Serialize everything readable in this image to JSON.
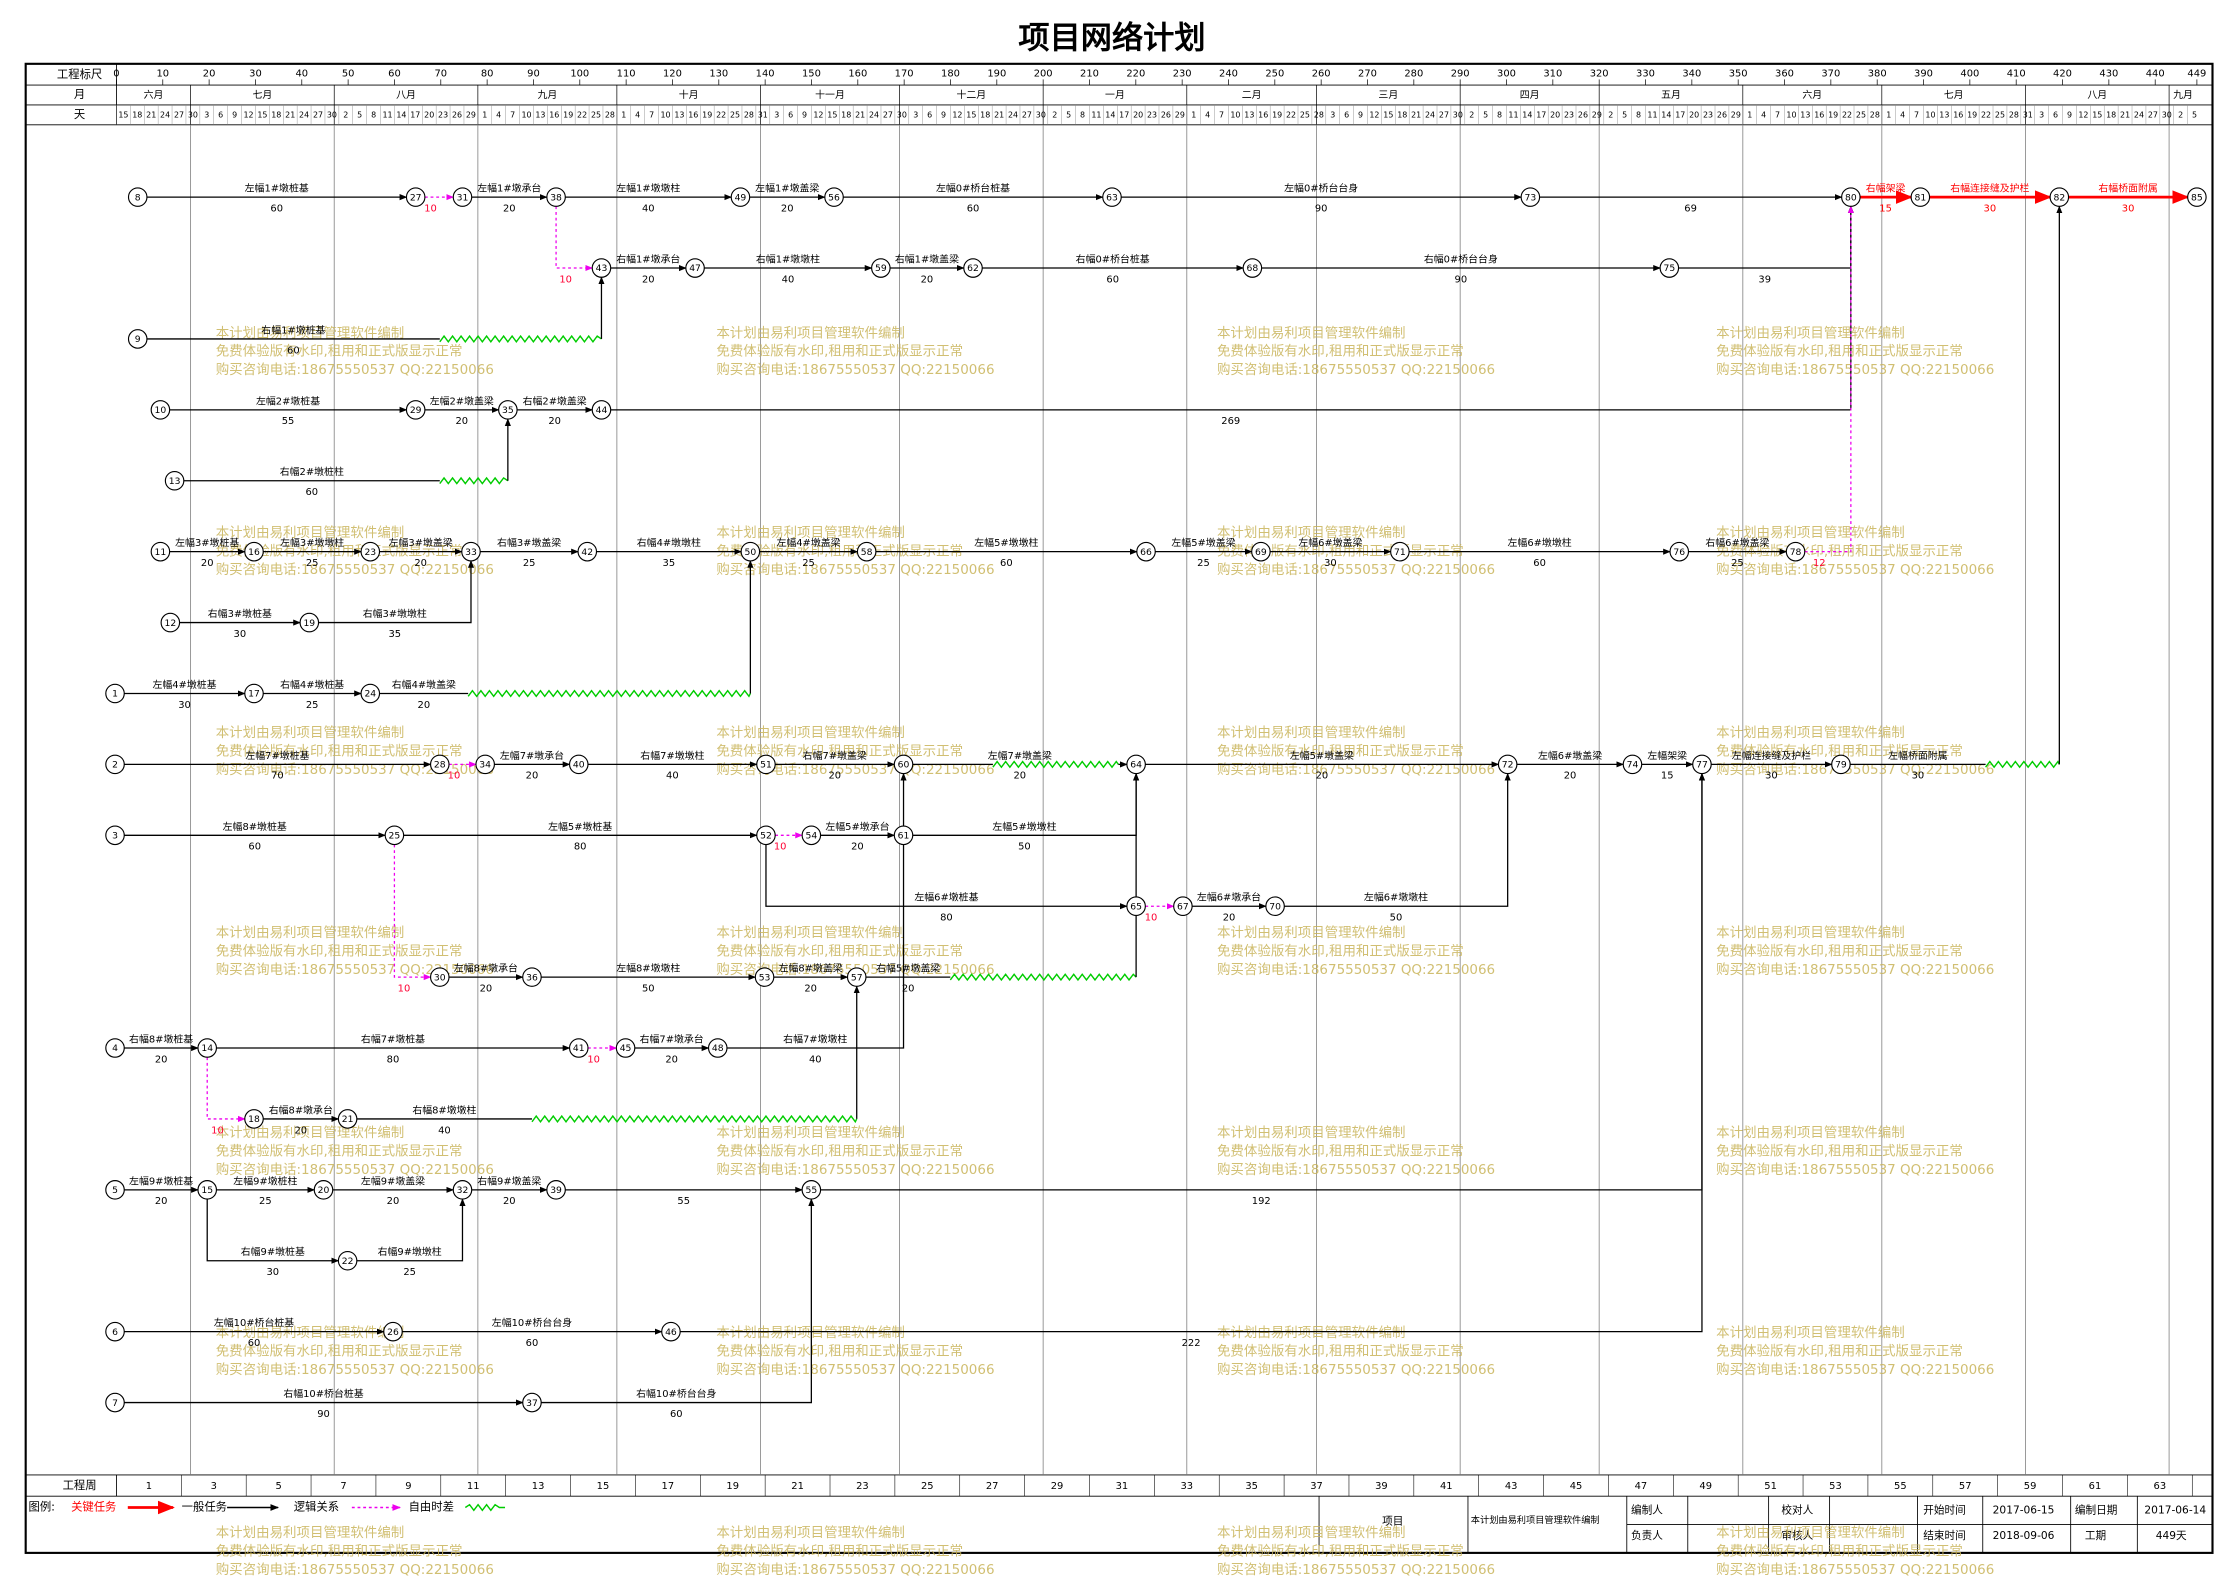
{
  "title": "项目网络计划",
  "scale_label": "工程标尺",
  "month_label": "月",
  "day_label": "天",
  "week_label": "工程周",
  "scale": [
    0,
    10,
    20,
    30,
    40,
    50,
    60,
    70,
    80,
    90,
    100,
    110,
    120,
    130,
    140,
    150,
    160,
    170,
    180,
    190,
    200,
    210,
    220,
    230,
    240,
    250,
    260,
    270,
    280,
    290,
    300,
    310,
    320,
    330,
    340,
    350,
    360,
    370,
    380,
    390,
    400,
    410,
    420,
    430,
    440,
    449
  ],
  "months": [
    "六月",
    "七月",
    "八月",
    "九月",
    "十月",
    "十一月",
    "十二月",
    "一月",
    "二月",
    "三月",
    "四月",
    "五月",
    "六月",
    "七月",
    "八月",
    "九月"
  ],
  "days": [
    15,
    18,
    21,
    24,
    27,
    30,
    3,
    6,
    9,
    12,
    15,
    18,
    21,
    24,
    27,
    30,
    2,
    5,
    8,
    11,
    14,
    17,
    20,
    23,
    26,
    29,
    1,
    4,
    7,
    10,
    13,
    16,
    19,
    22,
    25,
    28,
    1,
    4,
    7,
    10,
    13,
    16,
    19,
    22,
    25,
    28,
    31,
    3,
    6,
    9,
    12,
    15,
    18,
    21,
    24,
    27,
    30,
    3,
    6,
    9,
    12,
    15,
    18,
    21,
    24,
    27,
    30,
    2,
    5,
    8,
    11,
    14,
    17,
    20,
    23,
    26,
    29,
    1,
    4,
    7,
    10,
    13,
    16,
    19,
    22,
    25,
    28,
    3,
    6,
    9,
    12,
    15,
    18,
    21,
    24,
    27,
    30,
    2,
    5,
    8,
    11,
    14,
    17,
    20,
    23,
    26,
    29,
    2,
    5,
    8,
    11,
    14,
    17,
    20,
    23,
    26,
    29,
    1,
    4,
    7,
    10,
    13,
    16,
    19,
    22,
    25,
    28,
    1,
    4,
    7,
    10,
    13,
    16,
    19,
    22,
    25,
    28,
    31,
    3,
    6,
    9,
    12,
    15,
    18,
    21,
    24,
    27,
    30,
    2,
    5
  ],
  "weeks": [
    1,
    3,
    5,
    7,
    9,
    11,
    13,
    15,
    17,
    19,
    21,
    23,
    25,
    27,
    29,
    31,
    33,
    35,
    37,
    39,
    41,
    43,
    45,
    47,
    49,
    51,
    53,
    55,
    57,
    59,
    61,
    63
  ],
  "nodes": [
    "8",
    "27",
    "31",
    "38",
    "49",
    "56",
    "63",
    "73",
    "80",
    "81",
    "82",
    "85",
    "43",
    "47",
    "59",
    "62",
    "68",
    "75",
    "9",
    "10",
    "29",
    "35",
    "44",
    "13",
    "11",
    "16",
    "23",
    "33",
    "42",
    "50",
    "58",
    "66",
    "69",
    "71",
    "76",
    "78",
    "12",
    "19",
    "1",
    "17",
    "24",
    "2",
    "28",
    "34",
    "40",
    "51",
    "60",
    "64",
    "72",
    "74",
    "77",
    "79",
    "3",
    "25",
    "52",
    "54",
    "61",
    "65",
    "67",
    "70",
    "30",
    "36",
    "53",
    "57",
    "4",
    "14",
    "41",
    "45",
    "48",
    "18",
    "21",
    "5",
    "15",
    "20",
    "32",
    "39",
    "55",
    "22",
    "6",
    "26",
    "46",
    "7",
    "37"
  ],
  "tasks": [
    {
      "name": "左幅1#墩桩基",
      "duration": 60
    },
    {
      "duration": 10
    },
    {
      "name": "左幅1#墩承台",
      "duration": 20
    },
    {
      "name": "左幅1#墩墩柱",
      "duration": 40
    },
    {
      "name": "左幅1#墩盖梁",
      "duration": 20
    },
    {
      "name": "左幅0#桥台桩基",
      "duration": 60
    },
    {
      "name": "左幅0#桥台台身",
      "duration": 90
    },
    {
      "duration": 69
    },
    {
      "name": "右幅架梁",
      "duration": 15
    },
    {
      "name": "右幅连接缝及护栏",
      "duration": 30
    },
    {
      "name": "右幅桥面附属",
      "duration": 30
    },
    {
      "duration": 10
    },
    {
      "name": "右幅1#墩承台",
      "duration": 20
    },
    {
      "name": "右幅1#墩墩柱",
      "duration": 40
    },
    {
      "name": "右幅1#墩盖梁",
      "duration": 20
    },
    {
      "name": "右幅0#桥台桩基",
      "duration": 60
    },
    {
      "name": "右幅0#桥台台身",
      "duration": 90
    },
    {
      "duration": 39
    },
    {
      "name": "右幅1#墩桩基",
      "duration": 60
    },
    {
      "name": "左幅2#墩桩基",
      "duration": 55
    },
    {
      "name": "左幅2#墩盖梁",
      "duration": 20
    },
    {
      "name": "右幅2#墩盖梁",
      "duration": 20
    },
    {
      "duration": 269
    },
    {
      "name": "右幅2#墩桩柱",
      "duration": 60
    },
    {
      "name": "左幅3#墩桩基",
      "duration": 20
    },
    {
      "name": "左幅3#墩墩柱",
      "duration": 25
    },
    {
      "name": "左幅3#墩盖梁",
      "duration": 20
    },
    {
      "name": "右幅3#墩盖梁",
      "duration": 25
    },
    {
      "name": "右幅4#墩墩柱",
      "duration": 35
    },
    {
      "name": "左幅4#墩盖梁",
      "duration": 25
    },
    {
      "name": "左幅5#墩墩柱",
      "duration": 60
    },
    {
      "name": "左幅5#墩盖梁",
      "duration": 25
    },
    {
      "name": "左幅6#墩盖梁",
      "duration": 30
    },
    {
      "name": "左幅6#墩墩柱",
      "duration": 60
    },
    {
      "name": "右幅6#墩盖梁",
      "duration": 25
    },
    {
      "duration": 12
    },
    {
      "name": "右幅3#墩桩基",
      "duration": 30
    },
    {
      "name": "右幅3#墩墩柱",
      "duration": 35
    },
    {
      "name": "左幅4#墩桩基",
      "duration": 30
    },
    {
      "name": "右幅4#墩桩基",
      "duration": 25
    },
    {
      "name": "右幅4#墩盖梁",
      "duration": 20
    },
    {
      "name": "左幅7#墩桩基",
      "duration": 70
    },
    {
      "duration": 10
    },
    {
      "name": "左幅7#墩承台",
      "duration": 20
    },
    {
      "name": "右幅7#墩墩柱",
      "duration": 40
    },
    {
      "name": "右幅7#墩盖梁",
      "duration": 20
    },
    {
      "name": "左幅7#墩盖梁",
      "duration": 20
    },
    {
      "name": "左幅5#墩盖梁",
      "duration": 20
    },
    {
      "name": "左幅6#墩盖梁",
      "duration": 20
    },
    {
      "name": "左幅架梁",
      "duration": 15
    },
    {
      "name": "左幅连接缝及护栏",
      "duration": 30
    },
    {
      "name": "左幅桥面附属",
      "duration": 30
    },
    {
      "name": "左幅8#墩桩基",
      "duration": 60
    },
    {
      "name": "左幅5#墩桩基",
      "duration": 80
    },
    {
      "duration": 10
    },
    {
      "name": "左幅5#墩承台",
      "duration": 20
    },
    {
      "name": "左幅5#墩墩柱",
      "duration": 50
    },
    {
      "name": "左幅6#墩桩基",
      "duration": 80
    },
    {
      "duration": 10
    },
    {
      "name": "左幅6#墩承台",
      "duration": 20
    },
    {
      "name": "左幅6#墩墩柱",
      "duration": 50
    },
    {
      "duration": 10
    },
    {
      "name": "左幅8#墩承台",
      "duration": 20
    },
    {
      "name": "左幅8#墩墩柱",
      "duration": 50
    },
    {
      "name": "左幅8#墩盖梁",
      "duration": 20
    },
    {
      "name": "右幅5#墩盖梁",
      "duration": 20
    },
    {
      "name": "右幅8#墩桩基",
      "duration": 20
    },
    {
      "name": "右幅7#墩桩基",
      "duration": 80
    },
    {
      "duration": 10
    },
    {
      "name": "右幅7#墩承台",
      "duration": 20
    },
    {
      "name": "右幅7#墩墩柱",
      "duration": 40
    },
    {
      "duration": 10
    },
    {
      "name": "右幅8#墩承台",
      "duration": 20
    },
    {
      "name": "右幅8#墩墩柱",
      "duration": 40
    },
    {
      "name": "左幅9#墩桩基",
      "duration": 20
    },
    {
      "name": "左幅9#墩桩柱",
      "duration": 25
    },
    {
      "name": "左幅9#墩盖梁",
      "duration": 20
    },
    {
      "name": "右幅9#墩盖梁",
      "duration": 20
    },
    {
      "duration": 55
    },
    {
      "duration": 192
    },
    {
      "name": "右幅9#墩桩基",
      "duration": 30
    },
    {
      "name": "右幅9#墩墩柱",
      "duration": 25
    },
    {
      "name": "左幅10#桥台桩基",
      "duration": 60
    },
    {
      "name": "左幅10#桥台台身",
      "duration": 60
    },
    {
      "duration": 222
    },
    {
      "name": "右幅10#桥台桩基",
      "duration": 90
    },
    {
      "name": "右幅10#桥台台身",
      "duration": 60
    }
  ],
  "watermark": [
    "本计划由易利项目管理软件编制",
    "免费体验版有水印,租用和正式版显示正常",
    "购买咨询电话:18675550537 QQ:22150066"
  ],
  "legend": {
    "title": "图例:",
    "critical": "关键任务",
    "normal": "一般任务",
    "logic": "逻辑关系",
    "float": "自由时差"
  },
  "info": {
    "project": "项目",
    "software": "本计划由易利项目管理软件编制",
    "author": "编制人",
    "manager": "负责人",
    "checker": "校对人",
    "reviewer": "审核人",
    "start_label": "开始时间",
    "start": "2017-06-15",
    "end_label": "结束时间",
    "end": "2018-09-06",
    "date_label": "编制日期",
    "date": "2017-06-14",
    "duration_label": "工期",
    "duration": "449天"
  }
}
